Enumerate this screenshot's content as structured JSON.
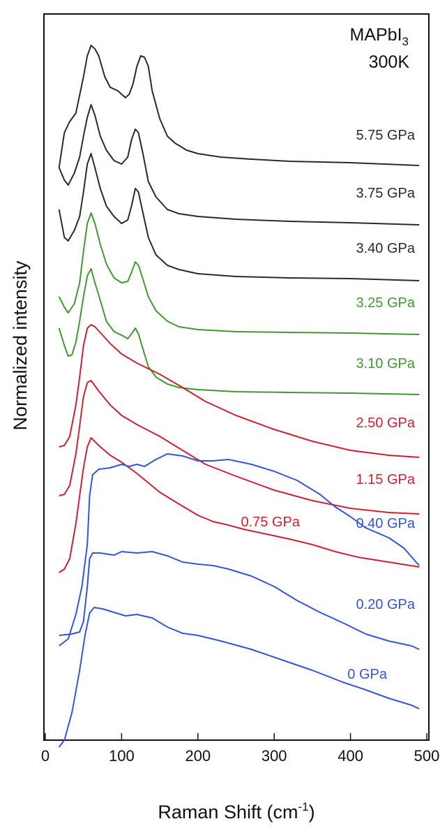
{
  "chart_data": {
    "type": "line",
    "title": "",
    "xlabel": "Raman Shift (cm",
    "xlabel_sup": "-1",
    "xlabel_close": ")",
    "ylabel": "Normalized intensity",
    "xlim": [
      0,
      500
    ],
    "x_ticks": [
      "0",
      "100",
      "200",
      "300",
      "400",
      "500"
    ],
    "y_ticks_shown": false,
    "grid": false,
    "annotation": {
      "compound_main": "MAPbI",
      "compound_sub": "3",
      "temperature": "300K"
    },
    "colors": {
      "black": "#2a2a2a",
      "green": "#3f9a2e",
      "red": "#cc2233",
      "blue": "#3355dd"
    },
    "series": [
      {
        "label": "5.75 GPa",
        "color": "black",
        "points": [
          [
            18,
            220
          ],
          [
            25,
            170
          ],
          [
            32,
            154
          ],
          [
            40,
            142
          ],
          [
            50,
            90
          ],
          [
            55,
            60
          ],
          [
            60,
            45
          ],
          [
            65,
            50
          ],
          [
            70,
            60
          ],
          [
            78,
            90
          ],
          [
            85,
            105
          ],
          [
            95,
            110
          ],
          [
            105,
            120
          ],
          [
            110,
            115
          ],
          [
            115,
            100
          ],
          [
            120,
            75
          ],
          [
            125,
            60
          ],
          [
            130,
            62
          ],
          [
            135,
            75
          ],
          [
            140,
            110
          ],
          [
            150,
            150
          ],
          [
            160,
            175
          ],
          [
            170,
            185
          ],
          [
            185,
            195
          ],
          [
            200,
            200
          ],
          [
            230,
            205
          ],
          [
            270,
            208
          ],
          [
            320,
            211
          ],
          [
            400,
            213
          ],
          [
            490,
            217
          ]
        ]
      },
      {
        "label": "3.75 GPa",
        "color": "black",
        "points": [
          [
            18,
            220
          ],
          [
            25,
            238
          ],
          [
            30,
            245
          ],
          [
            38,
            228
          ],
          [
            45,
            205
          ],
          [
            50,
            175
          ],
          [
            55,
            148
          ],
          [
            60,
            130
          ],
          [
            65,
            145
          ],
          [
            72,
            175
          ],
          [
            80,
            195
          ],
          [
            90,
            210
          ],
          [
            100,
            215
          ],
          [
            108,
            205
          ],
          [
            113,
            180
          ],
          [
            118,
            165
          ],
          [
            122,
            170
          ],
          [
            128,
            200
          ],
          [
            135,
            240
          ],
          [
            145,
            262
          ],
          [
            160,
            280
          ],
          [
            175,
            286
          ],
          [
            200,
            290
          ],
          [
            250,
            294
          ],
          [
            320,
            297
          ],
          [
            400,
            299
          ],
          [
            490,
            302
          ]
        ]
      },
      {
        "label": "3.40 GPa",
        "color": "black",
        "points": [
          [
            18,
            280
          ],
          [
            25,
            320
          ],
          [
            30,
            325
          ],
          [
            38,
            310
          ],
          [
            45,
            290
          ],
          [
            50,
            255
          ],
          [
            55,
            215
          ],
          [
            60,
            200
          ],
          [
            65,
            220
          ],
          [
            72,
            250
          ],
          [
            80,
            275
          ],
          [
            90,
            290
          ],
          [
            100,
            300
          ],
          [
            108,
            295
          ],
          [
            113,
            275
          ],
          [
            118,
            250
          ],
          [
            122,
            255
          ],
          [
            128,
            285
          ],
          [
            135,
            320
          ],
          [
            145,
            345
          ],
          [
            160,
            360
          ],
          [
            175,
            366
          ],
          [
            200,
            372
          ],
          [
            250,
            376
          ],
          [
            320,
            378
          ],
          [
            400,
            379
          ],
          [
            490,
            382
          ]
        ]
      },
      {
        "label": "3.25 GPa",
        "color": "green",
        "points": [
          [
            18,
            405
          ],
          [
            25,
            420
          ],
          [
            30,
            428
          ],
          [
            38,
            415
          ],
          [
            45,
            385
          ],
          [
            50,
            340
          ],
          [
            55,
            300
          ],
          [
            60,
            285
          ],
          [
            65,
            300
          ],
          [
            72,
            330
          ],
          [
            80,
            358
          ],
          [
            90,
            378
          ],
          [
            100,
            385
          ],
          [
            108,
            383
          ],
          [
            113,
            370
          ],
          [
            118,
            355
          ],
          [
            122,
            360
          ],
          [
            128,
            380
          ],
          [
            135,
            405
          ],
          [
            145,
            425
          ],
          [
            160,
            440
          ],
          [
            175,
            448
          ],
          [
            200,
            452
          ],
          [
            250,
            455
          ],
          [
            320,
            456
          ],
          [
            400,
            457
          ],
          [
            490,
            459
          ]
        ]
      },
      {
        "label": "3.10 GPa",
        "color": "green",
        "points": [
          [
            18,
            450
          ],
          [
            25,
            475
          ],
          [
            30,
            490
          ],
          [
            35,
            488
          ],
          [
            40,
            470
          ],
          [
            45,
            440
          ],
          [
            50,
            405
          ],
          [
            55,
            375
          ],
          [
            60,
            365
          ],
          [
            65,
            385
          ],
          [
            72,
            410
          ],
          [
            80,
            440
          ],
          [
            90,
            455
          ],
          [
            100,
            460
          ],
          [
            108,
            465
          ],
          [
            113,
            458
          ],
          [
            118,
            450
          ],
          [
            122,
            458
          ],
          [
            128,
            480
          ],
          [
            135,
            505
          ],
          [
            145,
            520
          ],
          [
            160,
            530
          ],
          [
            175,
            535
          ],
          [
            200,
            538
          ],
          [
            250,
            541
          ],
          [
            320,
            542
          ],
          [
            400,
            543
          ],
          [
            490,
            545
          ]
        ]
      },
      {
        "label": "2.50 GPa",
        "color": "red",
        "points": [
          [
            18,
            620
          ],
          [
            25,
            618
          ],
          [
            32,
            605
          ],
          [
            40,
            560
          ],
          [
            45,
            520
          ],
          [
            50,
            475
          ],
          [
            55,
            450
          ],
          [
            60,
            445
          ],
          [
            65,
            448
          ],
          [
            75,
            460
          ],
          [
            85,
            472
          ],
          [
            100,
            487
          ],
          [
            120,
            500
          ],
          [
            150,
            516
          ],
          [
            180,
            535
          ],
          [
            210,
            555
          ],
          [
            250,
            575
          ],
          [
            300,
            595
          ],
          [
            350,
            612
          ],
          [
            400,
            625
          ],
          [
            450,
            632
          ],
          [
            490,
            635
          ]
        ]
      },
      {
        "label": "1.15 GPa",
        "color": "red",
        "points": [
          [
            18,
            690
          ],
          [
            25,
            688
          ],
          [
            32,
            675
          ],
          [
            40,
            630
          ],
          [
            45,
            590
          ],
          [
            50,
            548
          ],
          [
            55,
            528
          ],
          [
            60,
            525
          ],
          [
            70,
            540
          ],
          [
            85,
            560
          ],
          [
            100,
            575
          ],
          [
            120,
            588
          ],
          [
            150,
            605
          ],
          [
            180,
            625
          ],
          [
            210,
            645
          ],
          [
            250,
            662
          ],
          [
            300,
            682
          ],
          [
            350,
            697
          ],
          [
            400,
            708
          ],
          [
            450,
            714
          ],
          [
            490,
            716
          ]
        ]
      },
      {
        "label": "0.75 GPa",
        "color": "red",
        "points": [
          [
            18,
            800
          ],
          [
            25,
            795
          ],
          [
            32,
            780
          ],
          [
            40,
            730
          ],
          [
            45,
            690
          ],
          [
            50,
            650
          ],
          [
            55,
            620
          ],
          [
            60,
            607
          ],
          [
            70,
            618
          ],
          [
            85,
            632
          ],
          [
            100,
            642
          ],
          [
            120,
            658
          ],
          [
            150,
            685
          ],
          [
            180,
            705
          ],
          [
            200,
            718
          ],
          [
            220,
            727
          ],
          [
            240,
            732
          ],
          [
            260,
            738
          ],
          [
            290,
            745
          ],
          [
            320,
            752
          ],
          [
            350,
            760
          ],
          [
            380,
            770
          ],
          [
            410,
            778
          ],
          [
            450,
            785
          ],
          [
            490,
            792
          ]
        ]
      },
      {
        "label": "0.40 GPa",
        "color": "blue",
        "points": [
          [
            18,
            905
          ],
          [
            30,
            895
          ],
          [
            40,
            860
          ],
          [
            48,
            820
          ],
          [
            55,
            760
          ],
          [
            58,
            690
          ],
          [
            62,
            660
          ],
          [
            70,
            652
          ],
          [
            85,
            650
          ],
          [
            100,
            645
          ],
          [
            110,
            648
          ],
          [
            120,
            645
          ],
          [
            130,
            648
          ],
          [
            145,
            638
          ],
          [
            160,
            630
          ],
          [
            180,
            633
          ],
          [
            200,
            640
          ],
          [
            220,
            640
          ],
          [
            240,
            638
          ],
          [
            270,
            645
          ],
          [
            300,
            655
          ],
          [
            330,
            668
          ],
          [
            360,
            688
          ],
          [
            380,
            706
          ],
          [
            400,
            720
          ],
          [
            420,
            736
          ],
          [
            450,
            750
          ],
          [
            470,
            765
          ],
          [
            490,
            790
          ]
        ]
      },
      {
        "label": "0.20 GPa",
        "color": "blue",
        "points": [
          [
            18,
            890
          ],
          [
            35,
            888
          ],
          [
            45,
            885
          ],
          [
            50,
            870
          ],
          [
            55,
            820
          ],
          [
            58,
            780
          ],
          [
            62,
            772
          ],
          [
            72,
            772
          ],
          [
            90,
            775
          ],
          [
            100,
            770
          ],
          [
            120,
            772
          ],
          [
            140,
            770
          ],
          [
            160,
            776
          ],
          [
            180,
            785
          ],
          [
            200,
            788
          ],
          [
            220,
            790
          ],
          [
            240,
            795
          ],
          [
            270,
            805
          ],
          [
            300,
            820
          ],
          [
            330,
            840
          ],
          [
            360,
            857
          ],
          [
            390,
            872
          ],
          [
            420,
            888
          ],
          [
            450,
            898
          ],
          [
            480,
            905
          ],
          [
            490,
            910
          ]
        ]
      },
      {
        "label": "0 GPa",
        "color": "blue",
        "points": [
          [
            18,
            1050
          ],
          [
            25,
            1040
          ],
          [
            35,
            1000
          ],
          [
            45,
            940
          ],
          [
            52,
            890
          ],
          [
            58,
            858
          ],
          [
            64,
            850
          ],
          [
            75,
            852
          ],
          [
            90,
            857
          ],
          [
            105,
            862
          ],
          [
            120,
            860
          ],
          [
            140,
            865
          ],
          [
            160,
            878
          ],
          [
            180,
            887
          ],
          [
            200,
            890
          ],
          [
            230,
            898
          ],
          [
            270,
            910
          ],
          [
            310,
            925
          ],
          [
            350,
            940
          ],
          [
            390,
            957
          ],
          [
            420,
            968
          ],
          [
            450,
            980
          ],
          [
            480,
            990
          ],
          [
            490,
            995
          ]
        ]
      }
    ]
  }
}
